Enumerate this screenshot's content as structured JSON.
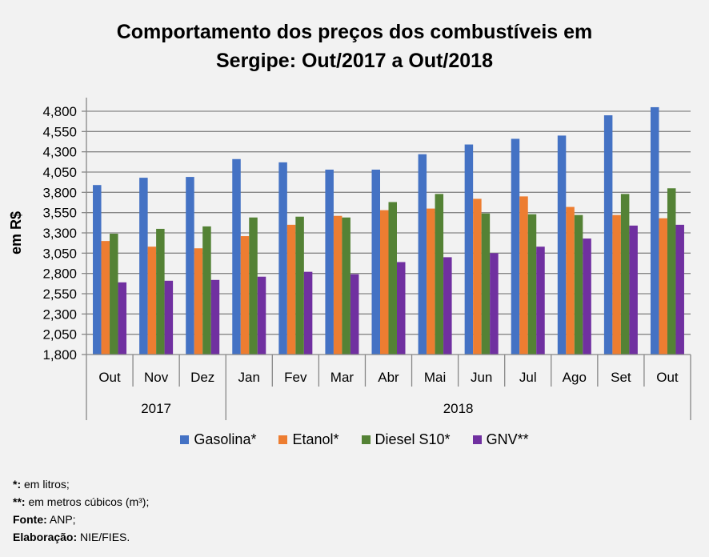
{
  "chart_data": {
    "type": "bar",
    "title_lines": [
      "Comportamento dos preços dos combustíveis em",
      "Sergipe: Out/2017 a Out/2018"
    ],
    "xlabel": "",
    "ylabel": "em R$",
    "ylim": [
      1.8,
      4.8
    ],
    "yticks": [
      "1,800",
      "2,050",
      "2,300",
      "2,550",
      "2,800",
      "3,050",
      "3,300",
      "3,550",
      "3,800",
      "4,050",
      "4,300",
      "4,550",
      "4,800"
    ],
    "ytick_values": [
      1.8,
      2.05,
      2.3,
      2.55,
      2.8,
      3.05,
      3.3,
      3.55,
      3.8,
      4.05,
      4.3,
      4.55,
      4.8
    ],
    "grid": true,
    "categories": [
      "Out",
      "Nov",
      "Dez",
      "Jan",
      "Fev",
      "Mar",
      "Abr",
      "Mai",
      "Jun",
      "Jul",
      "Ago",
      "Set",
      "Out"
    ],
    "category_groups": [
      {
        "label": "2017",
        "count": 3
      },
      {
        "label": "2018",
        "count": 10
      }
    ],
    "series": [
      {
        "name": "Gasolina*",
        "color": "#4472C4",
        "values": [
          3.89,
          3.98,
          3.99,
          4.21,
          4.17,
          4.08,
          4.08,
          4.27,
          4.39,
          4.46,
          4.5,
          4.75,
          4.85
        ]
      },
      {
        "name": "Etanol*",
        "color": "#ED7D31",
        "values": [
          3.2,
          3.13,
          3.11,
          3.26,
          3.4,
          3.51,
          3.58,
          3.6,
          3.72,
          3.75,
          3.62,
          3.52,
          3.48
        ]
      },
      {
        "name": "Diesel S10*",
        "color": "#548235",
        "values": [
          3.29,
          3.35,
          3.38,
          3.49,
          3.5,
          3.49,
          3.68,
          3.78,
          3.54,
          3.53,
          3.52,
          3.78,
          3.85
        ]
      },
      {
        "name": "GNV**",
        "color": "#7030A0",
        "values": [
          2.69,
          2.71,
          2.72,
          2.76,
          2.82,
          2.79,
          2.94,
          3.0,
          3.05,
          3.13,
          3.23,
          3.39,
          3.4
        ]
      }
    ],
    "legend_position": "bottom"
  },
  "notes": [
    {
      "bold": "*:",
      "text": " em litros;"
    },
    {
      "bold": "**:",
      "text": " em metros cúbicos (m³);"
    },
    {
      "bold": "Fonte:",
      "text": " ANP;"
    },
    {
      "bold": "Elaboração:",
      "text": " NIE/FIES."
    }
  ]
}
